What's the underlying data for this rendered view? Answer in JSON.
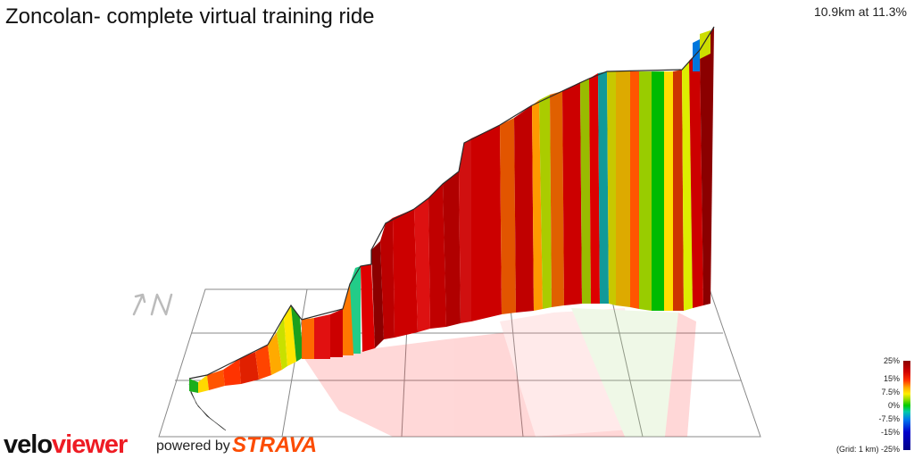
{
  "title": "Zoncolan- complete virtual training ride",
  "stat": "10.9km at 11.3%",
  "north_label": "↑N",
  "legend": {
    "ticks": [
      "25%",
      "15%",
      "7.5%",
      "0%",
      "-7.5%",
      "-15%"
    ],
    "grid_note": "(Grid: 1 km) -25%"
  },
  "branding": {
    "logo_part1": "velo",
    "logo_part2": "viewer",
    "powered_by": "powered by",
    "strava": "STRAVA"
  },
  "colors": {
    "steep_max": "#8b0000",
    "steep": "#cc0000",
    "hard": "#ff3300",
    "moderate": "#ff8800",
    "medium": "#ffdd00",
    "easy": "#99cc00",
    "flat": "#00bb00",
    "descent": "#0077dd"
  }
}
